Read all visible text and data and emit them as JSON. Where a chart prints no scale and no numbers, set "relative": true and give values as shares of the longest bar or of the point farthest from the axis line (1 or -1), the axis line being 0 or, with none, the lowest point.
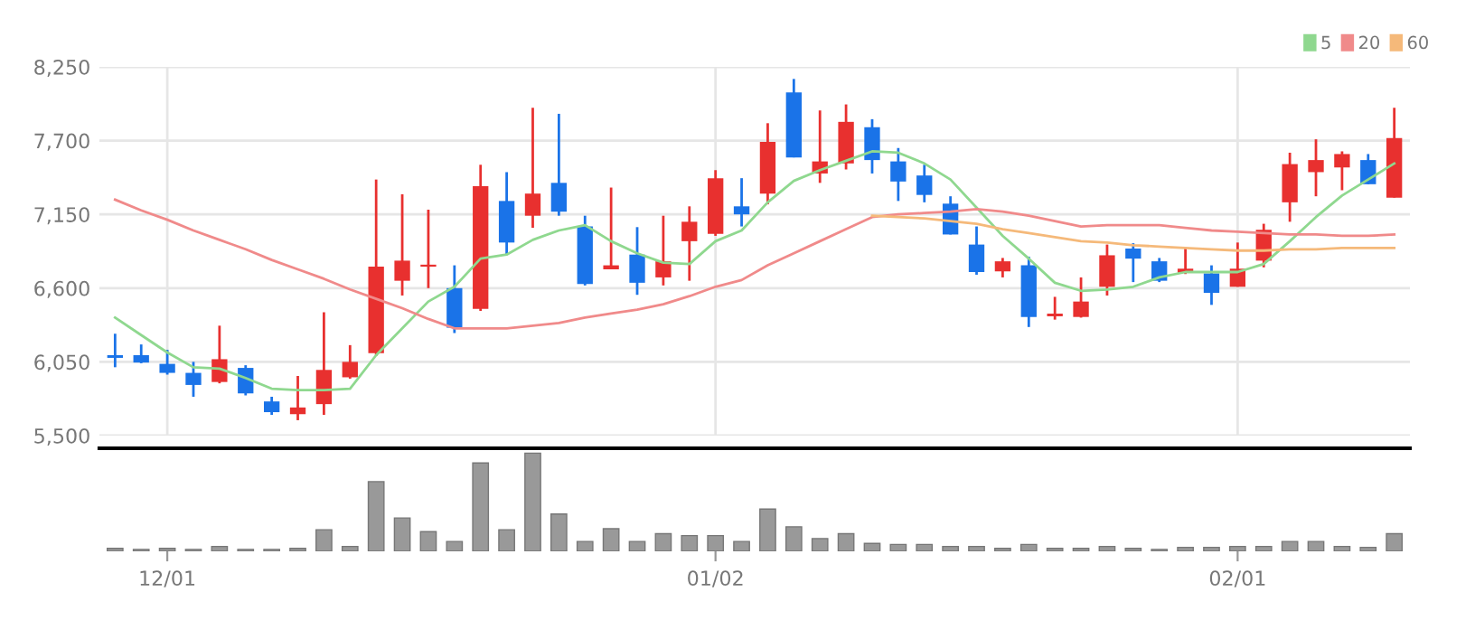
{
  "chart_data": [
    {
      "type": "candlestick",
      "categories": [
        null,
        null,
        null,
        null,
        null,
        null,
        null,
        null,
        null,
        null,
        null,
        null,
        null,
        null,
        null,
        null,
        null,
        null,
        null,
        null,
        null,
        null,
        null,
        null,
        null,
        null,
        null,
        null,
        null,
        null,
        null,
        null,
        null,
        null,
        null,
        null,
        null,
        null,
        null,
        null,
        null,
        null,
        null,
        null,
        null,
        null,
        null,
        null,
        null,
        null
      ],
      "ohlc": [
        [
          6100,
          6260,
          6010,
          6080
        ],
        [
          6100,
          6180,
          6040,
          6045
        ],
        [
          6035,
          6140,
          5955,
          5968
        ],
        [
          5968,
          6050,
          5790,
          5878
        ],
        [
          5900,
          6320,
          5890,
          6070
        ],
        [
          6005,
          6025,
          5800,
          5815
        ],
        [
          5755,
          5790,
          5655,
          5675
        ],
        [
          5660,
          5945,
          5615,
          5710
        ],
        [
          5735,
          6420,
          5655,
          5990
        ],
        [
          5935,
          6175,
          5925,
          6050
        ],
        [
          6115,
          7410,
          6095,
          6760
        ],
        [
          6655,
          7300,
          6545,
          6805
        ],
        [
          6760,
          7185,
          6600,
          6775
        ],
        [
          6600,
          6770,
          6265,
          6305
        ],
        [
          6445,
          7520,
          6430,
          7360
        ],
        [
          7250,
          7465,
          6850,
          6940
        ],
        [
          7140,
          7945,
          7050,
          7305
        ],
        [
          7385,
          7900,
          7140,
          7170
        ],
        [
          7060,
          7140,
          6620,
          6630
        ],
        [
          6740,
          7350,
          6740,
          6770
        ],
        [
          6850,
          7055,
          6550,
          6640
        ],
        [
          6680,
          7140,
          6620,
          6800
        ],
        [
          6950,
          7210,
          6655,
          7095
        ],
        [
          7005,
          7480,
          6990,
          7420
        ],
        [
          7210,
          7420,
          7060,
          7150
        ],
        [
          7305,
          7830,
          7225,
          7690
        ],
        [
          8060,
          8160,
          7575,
          7575
        ],
        [
          7455,
          7925,
          7385,
          7545
        ],
        [
          7530,
          7970,
          7485,
          7840
        ],
        [
          7800,
          7860,
          7455,
          7555
        ],
        [
          7545,
          7645,
          7250,
          7395
        ],
        [
          7440,
          7520,
          7240,
          7295
        ],
        [
          7230,
          7285,
          7000,
          7000
        ],
        [
          6925,
          7060,
          6700,
          6720
        ],
        [
          6725,
          6825,
          6680,
          6800
        ],
        [
          6770,
          6835,
          6310,
          6385
        ],
        [
          6390,
          6535,
          6365,
          6410
        ],
        [
          6385,
          6680,
          6380,
          6500
        ],
        [
          6610,
          6925,
          6545,
          6845
        ],
        [
          6895,
          6935,
          6645,
          6820
        ],
        [
          6800,
          6825,
          6645,
          6655
        ],
        [
          6715,
          6905,
          6705,
          6745
        ],
        [
          6710,
          6770,
          6475,
          6565
        ],
        [
          6610,
          6940,
          6610,
          6745
        ],
        [
          6805,
          7080,
          6755,
          7035
        ],
        [
          7240,
          7610,
          7095,
          7525
        ],
        [
          7465,
          7710,
          7285,
          7555
        ],
        [
          7500,
          7620,
          7330,
          7600
        ],
        [
          7555,
          7600,
          7375,
          7375
        ],
        [
          7275,
          7945,
          7275,
          7720
        ]
      ],
      "colors": [
        "#1a73e8",
        "#1a73e8",
        "#1a73e8",
        "#1a73e8",
        "#e8302f",
        "#1a73e8",
        "#1a73e8",
        "#e8302f",
        "#e8302f",
        "#e8302f",
        "#e8302f",
        "#e8302f",
        "#e8302f",
        "#1a73e8",
        "#e8302f",
        "#1a73e8",
        "#e8302f",
        "#1a73e8",
        "#1a73e8",
        "#e8302f",
        "#1a73e8",
        "#e8302f",
        "#e8302f",
        "#e8302f",
        "#1a73e8",
        "#e8302f",
        "#1a73e8",
        "#e8302f",
        "#e8302f",
        "#1a73e8",
        "#1a73e8",
        "#1a73e8",
        "#1a73e8",
        "#1a73e8",
        "#e8302f",
        "#1a73e8",
        "#e8302f",
        "#e8302f",
        "#e8302f",
        "#1a73e8",
        "#1a73e8",
        "#e8302f",
        "#1a73e8",
        "#e8302f",
        "#e8302f",
        "#e8302f",
        "#e8302f",
        "#e8302f",
        "#1a73e8",
        "#e8302f"
      ],
      "series": [
        {
          "name": "5",
          "type": "line",
          "color": "#8fd88f",
          "values": [
            6380,
            6250,
            6120,
            6010,
            6000,
            5930,
            5850,
            5840,
            5840,
            5850,
            6100,
            6300,
            6500,
            6610,
            6820,
            6850,
            6960,
            7030,
            7070,
            6950,
            6860,
            6790,
            6780,
            6950,
            7030,
            7240,
            7400,
            7480,
            7550,
            7620,
            7610,
            7530,
            7410,
            7200,
            6990,
            6820,
            6640,
            6580,
            6590,
            6610,
            6680,
            6720,
            6720,
            6720,
            6780,
            6950,
            7130,
            7290,
            7410,
            7530
          ]
        },
        {
          "name": "20",
          "type": "line",
          "color": "#f08a8a",
          "values": [
            7260,
            7180,
            7110,
            7030,
            6960,
            6890,
            6810,
            6740,
            6670,
            6590,
            6520,
            6450,
            6370,
            6300,
            6300,
            6300,
            6320,
            6340,
            6380,
            6410,
            6440,
            6480,
            6540,
            6610,
            6660,
            6770,
            6860,
            6950,
            7040,
            7130,
            7150,
            7160,
            7170,
            7190,
            7170,
            7140,
            7100,
            7060,
            7070,
            7070,
            7070,
            7050,
            7030,
            7020,
            7010,
            7000,
            7000,
            6990,
            6990,
            7000
          ]
        },
        {
          "name": "60",
          "type": "line",
          "color": "#f5b97a",
          "values": [
            null,
            null,
            null,
            null,
            null,
            null,
            null,
            null,
            null,
            null,
            null,
            null,
            null,
            null,
            null,
            null,
            null,
            null,
            null,
            null,
            null,
            null,
            null,
            null,
            null,
            null,
            null,
            null,
            null,
            7140,
            7130,
            7120,
            7100,
            7080,
            7040,
            7010,
            6980,
            6950,
            6940,
            6920,
            6910,
            6900,
            6890,
            6880,
            6880,
            6890,
            6890,
            6900,
            6900,
            6900
          ]
        }
      ],
      "ylim": [
        5500,
        8250
      ],
      "yticks": [
        {
          "value": 5500,
          "label": "5,500"
        },
        {
          "value": 6050,
          "label": "6,050"
        },
        {
          "value": 6600,
          "label": "6,600"
        },
        {
          "value": 7150,
          "label": "7,150"
        },
        {
          "value": 7700,
          "label": "7,700"
        },
        {
          "value": 8250,
          "label": "8,250"
        }
      ],
      "grid": true,
      "legend": "top right",
      "tick_labels": "y",
      "marker": "none"
    },
    {
      "type": "bar",
      "categories": [
        null,
        null,
        "12/01",
        null,
        null,
        null,
        null,
        null,
        null,
        null,
        null,
        null,
        null,
        null,
        null,
        null,
        null,
        null,
        null,
        null,
        null,
        null,
        null,
        "01/02",
        null,
        null,
        null,
        null,
        null,
        null,
        null,
        null,
        null,
        null,
        null,
        null,
        null,
        null,
        null,
        null,
        null,
        null,
        null,
        "02/01",
        null,
        null,
        null,
        null,
        null,
        null
      ],
      "values": [
        0.03,
        0.02,
        0.03,
        0.02,
        0.05,
        0.02,
        0.02,
        0.03,
        0.22,
        0.05,
        0.71,
        0.34,
        0.2,
        0.1,
        0.9,
        0.22,
        1,
        0.38,
        0.1,
        0.23,
        0.1,
        0.18,
        0.16,
        0.16,
        0.1,
        0.43,
        0.25,
        0.13,
        0.18,
        0.08,
        0.07,
        0.07,
        0.05,
        0.05,
        0.03,
        0.07,
        0.03,
        0.03,
        0.05,
        0.03,
        0.02,
        0.04,
        0.04,
        0.05,
        0.05,
        0.1,
        0.1,
        0.05,
        0.04,
        0.18
      ],
      "color": "#999999",
      "relative": true,
      "tick_labels": "x"
    }
  ]
}
